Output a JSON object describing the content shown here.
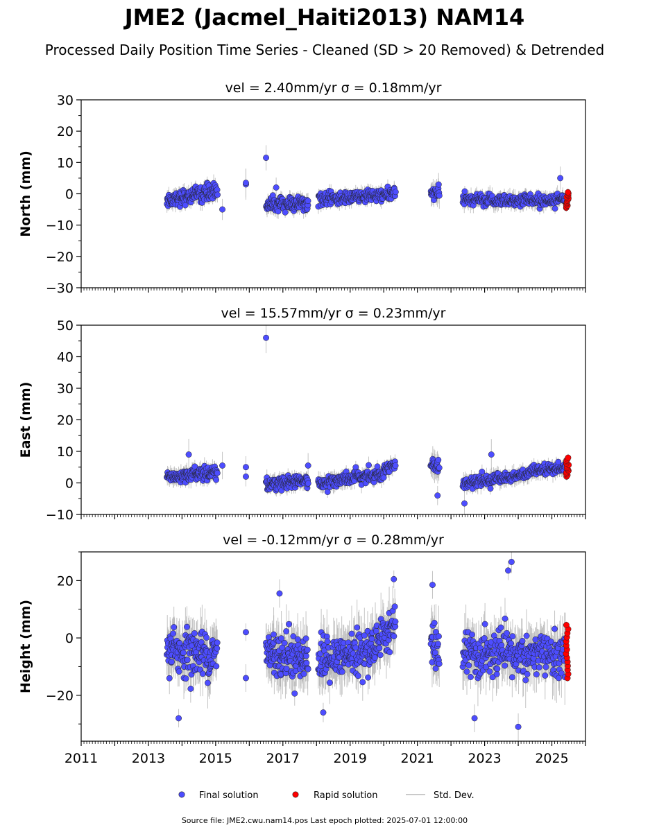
{
  "title": "JME2 (Jacmel_Haiti2013) NAM14",
  "subtitle": "Processed Daily Position Time Series - Cleaned (SD > 20 Removed) & Detrended",
  "legend": {
    "final": "Final solution",
    "rapid": "Rapid solution",
    "stddev": "Std. Dev."
  },
  "footer": "Source file: JME2.cwu.nam14.pos  Last epoch plotted: 2025-07-01 12:00:00",
  "colors": {
    "final": "#4d4dff",
    "rapid": "#ff0000",
    "stddev": "#b0b0b0"
  },
  "chart_data": [
    {
      "type": "scatter",
      "title": "vel = 2.40mm/yr   σ = 0.18mm/yr",
      "ylabel": "North (mm)",
      "xlim": [
        2011.0,
        2026.0
      ],
      "ylim": [
        -30,
        30
      ],
      "yticks": [
        -30,
        -20,
        -10,
        0,
        10,
        20,
        30
      ],
      "ytick_labels": [
        "−30",
        "−20",
        "−10",
        "0",
        "10",
        "20",
        "30"
      ],
      "segments": [
        {
          "x0": 2013.55,
          "x1": 2015.05,
          "mean0": -2.0,
          "mean1": 1.0,
          "spread": 2.2,
          "err": 2.0,
          "count": 150
        },
        {
          "x0": 2016.5,
          "x1": 2017.75,
          "mean0": -3.5,
          "mean1": -3.0,
          "spread": 2.0,
          "err": 2.0,
          "count": 130
        },
        {
          "x0": 2018.05,
          "x1": 2020.35,
          "mean0": -2.0,
          "mean1": 0.0,
          "spread": 1.8,
          "err": 1.8,
          "count": 210
        },
        {
          "x0": 2021.4,
          "x1": 2021.65,
          "mean0": 0.5,
          "mean1": 0.0,
          "spread": 2.0,
          "err": 3.0,
          "count": 25
        },
        {
          "x0": 2022.35,
          "x1": 2025.4,
          "mean0": -2.0,
          "mean1": -2.0,
          "spread": 1.8,
          "err": 2.0,
          "count": 260
        }
      ],
      "outliers": [
        {
          "x": 2015.2,
          "y": -5.0
        },
        {
          "x": 2015.9,
          "y": 3.0
        },
        {
          "x": 2015.9,
          "y": 3.5
        },
        {
          "x": 2016.5,
          "y": 11.5
        },
        {
          "x": 2016.8,
          "y": 2.0
        },
        {
          "x": 2025.25,
          "y": 5.0
        }
      ],
      "rapid": {
        "x0": 2025.42,
        "x1": 2025.5,
        "y_min": -4.5,
        "y_max": 0.5,
        "count": 14
      }
    },
    {
      "type": "scatter",
      "title": "vel = 15.57mm/yr   σ = 0.23mm/yr",
      "ylabel": "East (mm)",
      "xlim": [
        2011.0,
        2026.0
      ],
      "ylim": [
        -10,
        50
      ],
      "yticks": [
        -10,
        0,
        10,
        20,
        30,
        40,
        50
      ],
      "ytick_labels": [
        "−10",
        "0",
        "10",
        "20",
        "30",
        "40",
        "50"
      ],
      "segments": [
        {
          "x0": 2013.55,
          "x1": 2015.05,
          "mean0": 2.0,
          "mean1": 3.5,
          "spread": 1.8,
          "err": 2.0,
          "count": 150
        },
        {
          "x0": 2016.5,
          "x1": 2017.75,
          "mean0": -0.5,
          "mean1": 0.5,
          "spread": 1.8,
          "err": 2.0,
          "count": 130
        },
        {
          "x0": 2018.05,
          "x1": 2020.0,
          "mean0": 0.0,
          "mean1": 3.0,
          "spread": 1.8,
          "err": 2.0,
          "count": 180
        },
        {
          "x0": 2020.0,
          "x1": 2020.35,
          "mean0": 4.5,
          "mean1": 6.0,
          "spread": 1.2,
          "err": 2.0,
          "count": 35
        },
        {
          "x0": 2021.4,
          "x1": 2021.65,
          "mean0": 6.0,
          "mean1": 5.0,
          "spread": 1.8,
          "err": 3.0,
          "count": 25
        },
        {
          "x0": 2022.35,
          "x1": 2025.4,
          "mean0": -0.5,
          "mean1": 5.0,
          "spread": 1.6,
          "err": 2.0,
          "count": 260
        }
      ],
      "outliers": [
        {
          "x": 2015.2,
          "y": 5.5
        },
        {
          "x": 2015.9,
          "y": 5.0
        },
        {
          "x": 2015.9,
          "y": 2.0
        },
        {
          "x": 2016.5,
          "y": 46.0
        },
        {
          "x": 2017.75,
          "y": 5.5
        },
        {
          "x": 2021.6,
          "y": -4.0
        },
        {
          "x": 2022.4,
          "y": -6.5
        },
        {
          "x": 2023.2,
          "y": 9.0
        },
        {
          "x": 2014.2,
          "y": 9.0
        }
      ],
      "rapid": {
        "x0": 2025.42,
        "x1": 2025.5,
        "y_min": 2.0,
        "y_max": 8.0,
        "count": 14
      }
    },
    {
      "type": "scatter",
      "title": "vel = -0.12mm/yr   σ = 0.28mm/yr",
      "ylabel": "Height (mm)",
      "xlim": [
        2011.0,
        2026.0
      ],
      "ylim": [
        -36,
        30
      ],
      "yticks": [
        -20,
        0,
        20
      ],
      "ytick_labels": [
        "−20",
        "0",
        "20"
      ],
      "xticks": [
        2011,
        2013,
        2015,
        2017,
        2019,
        2021,
        2023,
        2025
      ],
      "xtick_labels": [
        "2011",
        "2013",
        "2015",
        "2017",
        "2019",
        "2021",
        "2023",
        "2025"
      ],
      "segments": [
        {
          "x0": 2013.55,
          "x1": 2015.05,
          "mean0": -4.0,
          "mean1": -6.0,
          "spread": 7.0,
          "err": 7.0,
          "count": 150
        },
        {
          "x0": 2016.5,
          "x1": 2017.75,
          "mean0": -5.0,
          "mean1": -7.0,
          "spread": 7.0,
          "err": 7.0,
          "count": 130
        },
        {
          "x0": 2018.05,
          "x1": 2019.6,
          "mean0": -8.0,
          "mean1": -5.0,
          "spread": 6.5,
          "err": 7.0,
          "count": 150
        },
        {
          "x0": 2019.6,
          "x1": 2020.35,
          "mean0": -3.0,
          "mean1": 5.0,
          "spread": 6.0,
          "err": 7.0,
          "count": 70
        },
        {
          "x0": 2021.4,
          "x1": 2021.65,
          "mean0": -2.0,
          "mean1": -6.0,
          "spread": 6.5,
          "err": 8.0,
          "count": 25
        },
        {
          "x0": 2022.35,
          "x1": 2025.4,
          "mean0": -6.0,
          "mean1": -6.0,
          "spread": 7.0,
          "err": 7.0,
          "count": 260
        }
      ],
      "outliers": [
        {
          "x": 2013.9,
          "y": -28.0
        },
        {
          "x": 2015.9,
          "y": 2.0
        },
        {
          "x": 2015.9,
          "y": -14.0
        },
        {
          "x": 2016.9,
          "y": 15.5
        },
        {
          "x": 2018.2,
          "y": -26.0
        },
        {
          "x": 2020.3,
          "y": 20.5
        },
        {
          "x": 2021.45,
          "y": 18.5
        },
        {
          "x": 2023.7,
          "y": 23.5
        },
        {
          "x": 2023.8,
          "y": 26.5
        },
        {
          "x": 2024.0,
          "y": -31.0
        },
        {
          "x": 2022.7,
          "y": -28.0
        }
      ],
      "rapid": {
        "x0": 2025.42,
        "x1": 2025.5,
        "y_min": -14.0,
        "y_max": 4.5,
        "count": 14
      }
    }
  ]
}
